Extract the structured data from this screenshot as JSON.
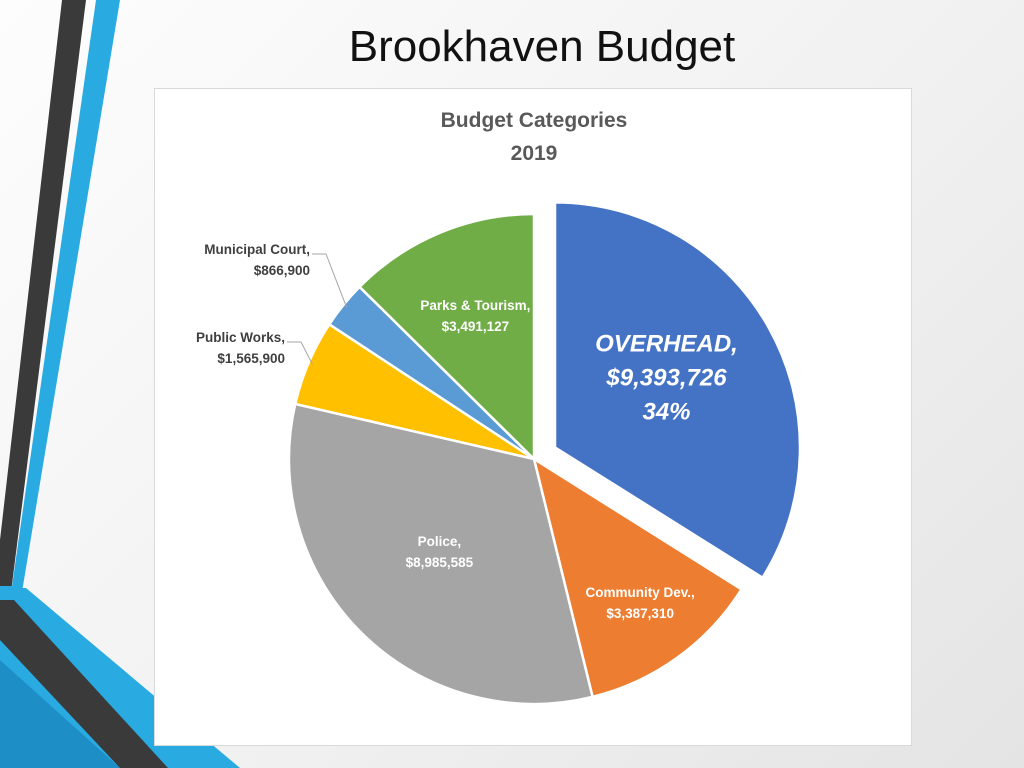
{
  "slide": {
    "title": "Brookhaven Budget"
  },
  "colors": {
    "overhead": "#4472C4",
    "community_dev": "#ED7D31",
    "police": "#A5A5A5",
    "public_works": "#FFC000",
    "municipal_court": "#5B9BD5",
    "parks_tourism": "#70AD47",
    "decor_blue": "#29ABE2",
    "decor_dark": "#3A3A3A"
  },
  "chart_data": {
    "type": "pie",
    "title": "Budget Categories",
    "subtitle": "2019",
    "legend": "none",
    "slices": [
      {
        "label": "Overhead",
        "display_label": "OVERHEAD,",
        "value": 9393726,
        "value_text": "$9,393,726",
        "percent_text": "34%",
        "color": "#4472C4",
        "exploded": true
      },
      {
        "label": "Community Dev.",
        "display_label": "Community Dev.,",
        "value": 3387310,
        "value_text": "$3,387,310",
        "color": "#ED7D31",
        "exploded": false
      },
      {
        "label": "Police",
        "display_label": "Police,",
        "value": 8985585,
        "value_text": "$8,985,585",
        "color": "#A5A5A5",
        "exploded": false
      },
      {
        "label": "Public Works",
        "display_label": "Public Works,",
        "value": 1565900,
        "value_text": "$1,565,900",
        "color": "#FFC000",
        "exploded": false
      },
      {
        "label": "Municipal Court",
        "display_label": "Municipal Court,",
        "value": 866900,
        "value_text": "$866,900",
        "color": "#5B9BD5",
        "exploded": false
      },
      {
        "label": "Parks & Tourism",
        "display_label": "Parks & Tourism,",
        "value": 3491127,
        "value_text": "$3,491,127",
        "color": "#70AD47",
        "exploded": false
      }
    ]
  }
}
